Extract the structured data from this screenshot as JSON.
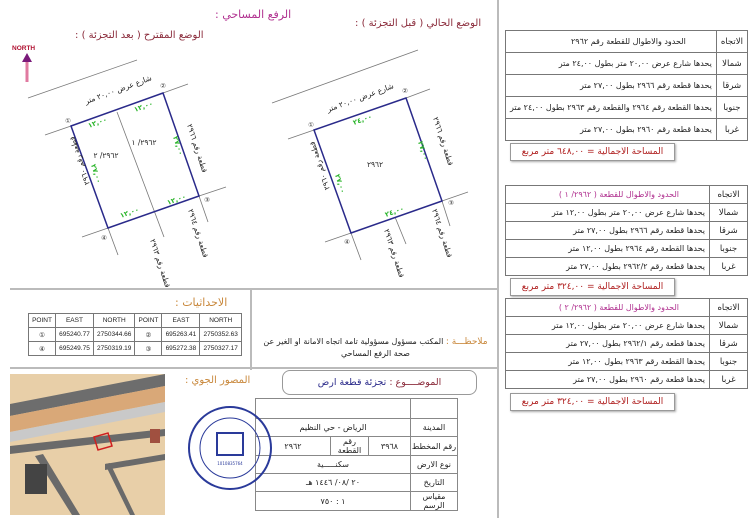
{
  "header": {
    "survey_title": "الرفع المساحي",
    "colon": ":",
    "proposed_title": "الوضع المقترح ( بعد التجزئة )",
    "current_title": "الوضع الحالي ( قبل التجزئة )",
    "north_label": "NORTH"
  },
  "proposed_drawing": {
    "street": "شارع عرض ٢٠,٠٠ متر",
    "east_plot": "قطعة رقم ٢٩٦٦",
    "west_plot": "قطعة رقم ٢٩٦٠",
    "south_plot_a": "قطعة رقم ٢٩٦٣",
    "south_plot_b": "قطعة رقم ٢٩٦٤",
    "sub1": "٢٩٦٢/ ١",
    "sub2": "٢٩٦٢/ ٢",
    "dim_north_a": "١٢,٠٠",
    "dim_north_b": "١٢,٠٠",
    "dim_south_a": "١٢,٠٠",
    "dim_south_b": "١٢,٠٠",
    "dim_east": "٢٧,٠٠",
    "dim_west": "٢٧,٠٠",
    "points": [
      "①",
      "②",
      "③",
      "④"
    ]
  },
  "current_drawing": {
    "street": "شارع عرض ٢٠,٠٠ متر",
    "east_plot": "قطعة رقم ٢٩٦٦",
    "west_plot": "قطعة رقم ٢٩٦٠",
    "south_plot_a": "قطعة رقم ٢٩٦٣",
    "south_plot_b": "قطعة رقم ٢٩٦٤",
    "plot": "٢٩٦٢",
    "dim_north": "٢٤,٠٠",
    "dim_south": "٢٤,٠٠",
    "dim_east": "٢٧,٠٠",
    "dim_west": "٢٧,٠٠",
    "points": [
      "①",
      "②",
      "③",
      "④"
    ]
  },
  "coordinates": {
    "title": "الاحداثيات :",
    "headers": [
      "POINT",
      "EAST",
      "NORTH",
      "POINT",
      "EAST",
      "NORTH"
    ],
    "rows": [
      [
        "①",
        "695240.77",
        "2750344.66",
        "②",
        "695263.41",
        "2750352.63"
      ],
      [
        "④",
        "695249.75",
        "2750319.19",
        "③",
        "695272.38",
        "2750327.17"
      ]
    ]
  },
  "aerial": {
    "title": "المصور الجوي :"
  },
  "stamp": {
    "text": "مكتب عالم الرسم للهندسة المدنية",
    "english": "Drawing World Office For Civil Engineering",
    "number": "1010835764"
  },
  "note": {
    "label": "ملاحظـــة :",
    "text": "المكتب مسؤول مسؤولية تامة اتجاه الامانة او الغير عن صحة الرفع المساحي"
  },
  "subject": {
    "label": "الموضــــوع :",
    "value": "تجزئة قطعة ارض"
  },
  "info": {
    "city_label": "المدينة",
    "city": "الرياض - حي النظيم",
    "plan_label": "رقم المخطط",
    "plan": "٣٩٦٨",
    "plot_label": "رقم القطعة",
    "plot": "٢٩٦٢",
    "type_label": "نوع الارض",
    "type": "سكنـــــية",
    "date_label": "التاريخ",
    "date": "٢٠ /٠٨/ ١٤٤٦ هـ",
    "scale_label": "مقياس الرسم",
    "scale": "١ : ٧٥٠"
  },
  "boundaries": [
    {
      "dir_header": "الاتجاه",
      "title": "الحدود والاطوال للقطعة رقم ٢٩٦٢",
      "rows": [
        [
          "شمالا",
          "يحدها شارع عرض ٢٠,٠٠ متر بطول ٢٤,٠٠ متر"
        ],
        [
          "شرقا",
          "يحدها قطعة رقم ٢٩٦٦ بطول ٢٧,٠٠ متر"
        ],
        [
          "جنوبا",
          "يحدها القطعة رقم ٢٩٦٤ والقطعة رقم ٢٩٦٣ بطول ٢٤,٠٠ متر"
        ],
        [
          "غربا",
          "يحدها قطعة رقم ٢٩٦٠ بطول ٢٧,٠٠ متر"
        ]
      ],
      "area": "المساحة الاجمالية = ٦٤٨,٠٠ متر مربع"
    },
    {
      "dir_header": "الاتجاه",
      "title": "الحدود والاطوال للقطعة ( ٢٩٦٢/ ١ )",
      "rows": [
        [
          "شمالا",
          "يحدها شارع عرض ٢٠,٠٠ متر بطول ١٢,٠٠ متر"
        ],
        [
          "شرقا",
          "يحدها قطعة رقم ٢٩٦٦ بطول ٢٧,٠٠ متر"
        ],
        [
          "جنوبا",
          "يحدها القطعة رقم ٢٩٦٤ بطول ١٢,٠٠ متر"
        ],
        [
          "غربا",
          "يحدها قطعة رقم ٢٩٦٢/٢ بطول ٢٧,٠٠ متر"
        ]
      ],
      "area": "المساحة الاجمالية = ٣٢٤,٠٠ متر مربع"
    },
    {
      "dir_header": "الاتجاه",
      "title": "الحدود والاطوال للقطعة ( ٢٩٦٢/ ٢ )",
      "rows": [
        [
          "شمالا",
          "يحدها شارع عرض ٢٠,٠٠ متر بطول ١٢,٠٠ متر"
        ],
        [
          "شرقا",
          "يحدها قطعة رقم ٢٩٦٢/١ بطول ٢٧,٠٠ متر"
        ],
        [
          "جنوبا",
          "يحدها القطعة رقم ٢٩٦٣ بطول ١٢,٠٠ متر"
        ],
        [
          "غربا",
          "يحدها قطعة رقم ٢٩٦٠ بطول ٢٧,٠٠ متر"
        ]
      ],
      "area": "المساحة الاجمالية = ٣٢٤,٠٠ متر مربع"
    }
  ],
  "colors": {
    "plot_outline": "#2a2a8a",
    "dimension": "#2bb52b",
    "title_magenta": "#b0308f",
    "area_red": "#b02020",
    "north_arrow": "#7a1a7a"
  }
}
